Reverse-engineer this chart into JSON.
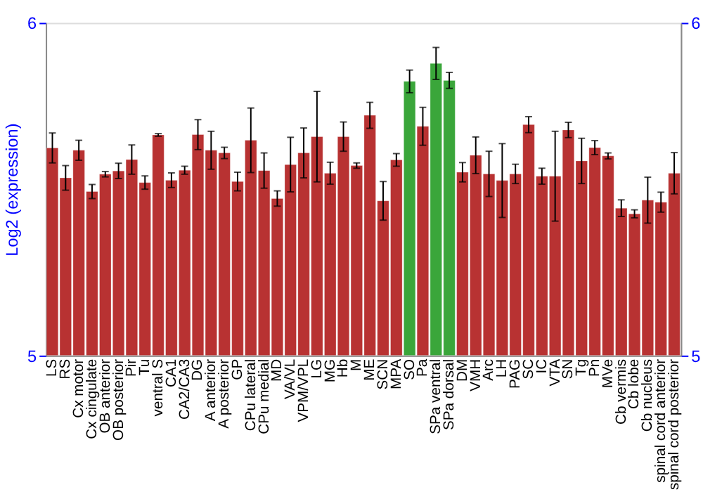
{
  "chart_data": {
    "type": "bar",
    "ylabel": "Log2 (expression)",
    "categories": [
      "LS",
      "RS",
      "Cx motor",
      "Cx cingulate",
      "OB anterior",
      "OB posterior",
      "Pir",
      "Tu",
      "ventral S",
      "CA1",
      "CA2/CA3",
      "DG",
      "A anterior",
      "A posterior",
      "GP",
      "CPu lateral",
      "CPu medial",
      "MD",
      "VA/VL",
      "VPM/VPL",
      "LG",
      "MG",
      "Hb",
      "M",
      "ME",
      "SCN",
      "MPA",
      "SO",
      "Pa",
      "SPa ventral",
      "SPa dorsal",
      "DM",
      "VMH",
      "Arc",
      "LH",
      "PAG",
      "SC",
      "IC",
      "VTA",
      "SN",
      "Tg",
      "Pn",
      "MVe",
      "Cb vermis",
      "Cb lobe",
      "Cb nucleus",
      "spinal cord anterior",
      "spinal cord posterior"
    ],
    "values": [
      5.624,
      5.534,
      5.617,
      5.493,
      5.545,
      5.555,
      5.589,
      5.52,
      5.663,
      5.527,
      5.557,
      5.664,
      5.617,
      5.609,
      5.523,
      5.647,
      5.556,
      5.472,
      5.574,
      5.609,
      5.658,
      5.548,
      5.658,
      5.571,
      5.722,
      5.465,
      5.588,
      5.824,
      5.689,
      5.878,
      5.827,
      5.551,
      5.602,
      5.546,
      5.526,
      5.546,
      5.694,
      5.539,
      5.539,
      5.678,
      5.585,
      5.625,
      5.6,
      5.443,
      5.426,
      5.467,
      5.461,
      5.548
    ],
    "errors": [
      0.045,
      0.037,
      0.03,
      0.021,
      0.008,
      0.023,
      0.044,
      0.02,
      0.004,
      0.022,
      0.012,
      0.045,
      0.057,
      0.017,
      0.028,
      0.097,
      0.053,
      0.023,
      0.082,
      0.075,
      0.136,
      0.033,
      0.044,
      0.008,
      0.039,
      0.058,
      0.019,
      0.034,
      0.057,
      0.048,
      0.024,
      0.029,
      0.055,
      0.068,
      0.111,
      0.029,
      0.024,
      0.024,
      0.135,
      0.023,
      0.068,
      0.021,
      0.009,
      0.025,
      0.012,
      0.069,
      0.03,
      0.062
    ],
    "colors": [
      "#b83232",
      "#b83232",
      "#b83232",
      "#b83232",
      "#b83232",
      "#b83232",
      "#b83232",
      "#b83232",
      "#b83232",
      "#b83232",
      "#b83232",
      "#b83232",
      "#b83232",
      "#b83232",
      "#b83232",
      "#b83232",
      "#b83232",
      "#b83232",
      "#b83232",
      "#b83232",
      "#b83232",
      "#b83232",
      "#b83232",
      "#b83232",
      "#b83232",
      "#b83232",
      "#b83232",
      "#3aa63a",
      "#b83232",
      "#3aa63a",
      "#3aa63a",
      "#b83232",
      "#b83232",
      "#b83232",
      "#b83232",
      "#b83232",
      "#b83232",
      "#b83232",
      "#b83232",
      "#b83232",
      "#b83232",
      "#b83232",
      "#b83232",
      "#b83232",
      "#b83232",
      "#b83232",
      "#b83232",
      "#b83232"
    ],
    "ylim": [
      5,
      6
    ],
    "yticks": [
      5,
      6
    ],
    "y2lim": [
      5,
      6
    ],
    "y2ticks": [
      5,
      6
    ],
    "grid": false
  }
}
